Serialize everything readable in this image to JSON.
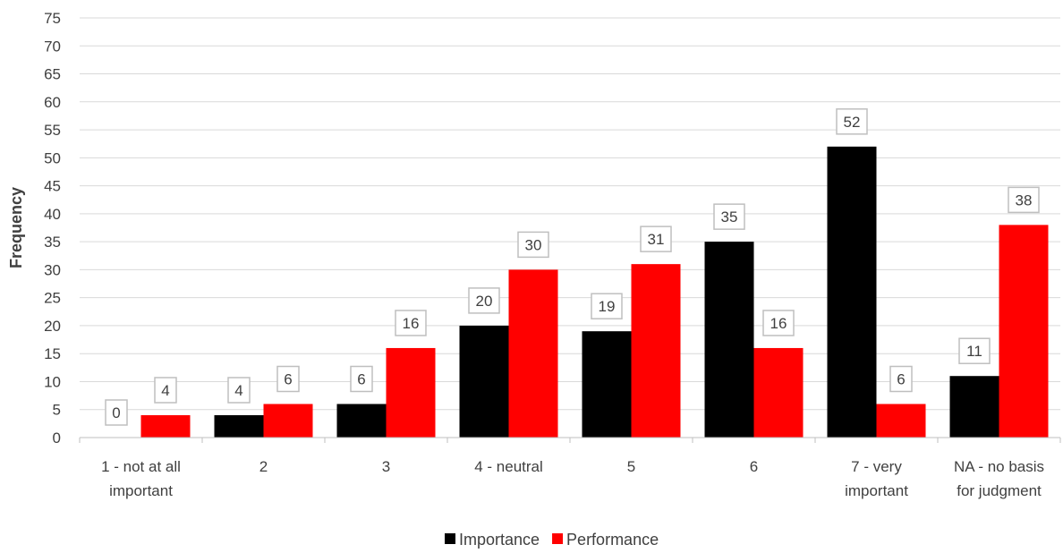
{
  "chart_data": {
    "type": "bar",
    "ylabel": "Frequency",
    "xlabel": "",
    "ylim": [
      0,
      75
    ],
    "ytick_step": 5,
    "grid": true,
    "legend_position": "bottom",
    "categories": [
      [
        "1 - not at all",
        "important"
      ],
      [
        "2"
      ],
      [
        "3"
      ],
      [
        "4 - neutral"
      ],
      [
        "5"
      ],
      [
        "6"
      ],
      [
        "7 - very",
        "important"
      ],
      [
        "NA - no basis",
        "for judgment"
      ]
    ],
    "series": [
      {
        "name": "Importance",
        "color": "#000000",
        "values": [
          0,
          4,
          6,
          20,
          19,
          35,
          52,
          11
        ]
      },
      {
        "name": "Performance",
        "color": "#ff0000",
        "values": [
          4,
          6,
          16,
          30,
          31,
          16,
          6,
          38
        ]
      }
    ]
  }
}
